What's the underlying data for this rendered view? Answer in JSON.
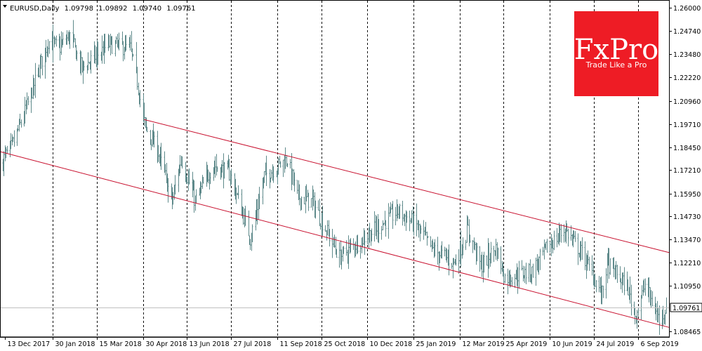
{
  "header": {
    "symbol": "EURUSD,Daily",
    "open": "1.09798",
    "high": "1.09892",
    "low": "1.09740",
    "close": "1.09761"
  },
  "logo": {
    "name": "FxPro",
    "tagline": "Trade Like a Pro",
    "color": "#ee1c25"
  },
  "current_price": "1.09761",
  "chart_data": {
    "type": "ohlc",
    "symbol": "EURUSD",
    "timeframe": "Daily",
    "bar_color": "#5f8a8b",
    "channel_color": "#c8102e",
    "grid": "vertical dashed",
    "y_ticks": [
      "1.26000",
      "1.24740",
      "1.23480",
      "1.22220",
      "1.20960",
      "1.19710",
      "1.18450",
      "1.17210",
      "1.15950",
      "1.14730",
      "1.13470",
      "1.12210",
      "1.10950",
      "1.08465"
    ],
    "ylim": [
      1.0818,
      1.2638
    ],
    "x_ticks": [
      "13 Dec 2017",
      "30 Jan 2018",
      "15 Mar 2018",
      "30 Apr 2018",
      "13 Jun 2018",
      "27 Jul 2018",
      "11 Sep 2018",
      "25 Oct 2018",
      "10 Dec 2018",
      "25 Jan 2019",
      "12 Mar 2019",
      "25 Apr 2019",
      "10 Jun 2019",
      "24 Jul 2019",
      "6 Sep 2019"
    ],
    "x_dates": [
      "2017-12-13",
      "2018-01-30",
      "2018-03-15",
      "2018-04-30",
      "2018-06-13",
      "2018-07-27",
      "2018-09-11",
      "2018-10-25",
      "2018-12-10",
      "2019-01-25",
      "2019-03-12",
      "2019-04-25",
      "2019-06-10",
      "2019-07-24",
      "2019-09-06"
    ],
    "xlim": [
      "2017-12-09",
      "2019-10-07"
    ],
    "price_path": [
      [
        "2017-12-09",
        1.176
      ],
      [
        "2017-12-20",
        1.185
      ],
      [
        "2018-01-03",
        1.205
      ],
      [
        "2018-01-12",
        1.22
      ],
      [
        "2018-01-25",
        1.242
      ],
      [
        "2018-02-05",
        1.238
      ],
      [
        "2018-02-16",
        1.245
      ],
      [
        "2018-02-28",
        1.227
      ],
      [
        "2018-03-12",
        1.233
      ],
      [
        "2018-03-27",
        1.24
      ],
      [
        "2018-04-17",
        1.238
      ],
      [
        "2018-04-24",
        1.22
      ],
      [
        "2018-05-02",
        1.195
      ],
      [
        "2018-05-15",
        1.182
      ],
      [
        "2018-05-29",
        1.155
      ],
      [
        "2018-06-07",
        1.179
      ],
      [
        "2018-06-21",
        1.155
      ],
      [
        "2018-07-09",
        1.175
      ],
      [
        "2018-07-26",
        1.17
      ],
      [
        "2018-08-15",
        1.135
      ],
      [
        "2018-08-29",
        1.169
      ],
      [
        "2018-09-21",
        1.178
      ],
      [
        "2018-10-01",
        1.158
      ],
      [
        "2018-10-16",
        1.155
      ],
      [
        "2018-11-12",
        1.125
      ],
      [
        "2018-12-03",
        1.134
      ],
      [
        "2019-01-10",
        1.15
      ],
      [
        "2019-01-28",
        1.142
      ],
      [
        "2019-02-13",
        1.129
      ],
      [
        "2019-03-07",
        1.122
      ],
      [
        "2019-03-20",
        1.14
      ],
      [
        "2019-04-02",
        1.12
      ],
      [
        "2019-04-17",
        1.13
      ],
      [
        "2019-04-26",
        1.114
      ],
      [
        "2019-05-23",
        1.117
      ],
      [
        "2019-06-07",
        1.13
      ],
      [
        "2019-06-25",
        1.14
      ],
      [
        "2019-07-12",
        1.127
      ],
      [
        "2019-08-01",
        1.105
      ],
      [
        "2019-08-06",
        1.122
      ],
      [
        "2019-08-27",
        1.108
      ],
      [
        "2019-09-03",
        1.093
      ],
      [
        "2019-09-13",
        1.11
      ],
      [
        "2019-09-27",
        1.091
      ],
      [
        "2019-10-04",
        1.0976
      ]
    ],
    "channel_upper": [
      [
        "2018-05-01",
        1.1995
      ],
      [
        "2019-10-07",
        1.1275
      ]
    ],
    "channel_lower": [
      [
        "2017-12-09",
        1.182
      ],
      [
        "2019-10-07",
        1.087
      ]
    ]
  }
}
